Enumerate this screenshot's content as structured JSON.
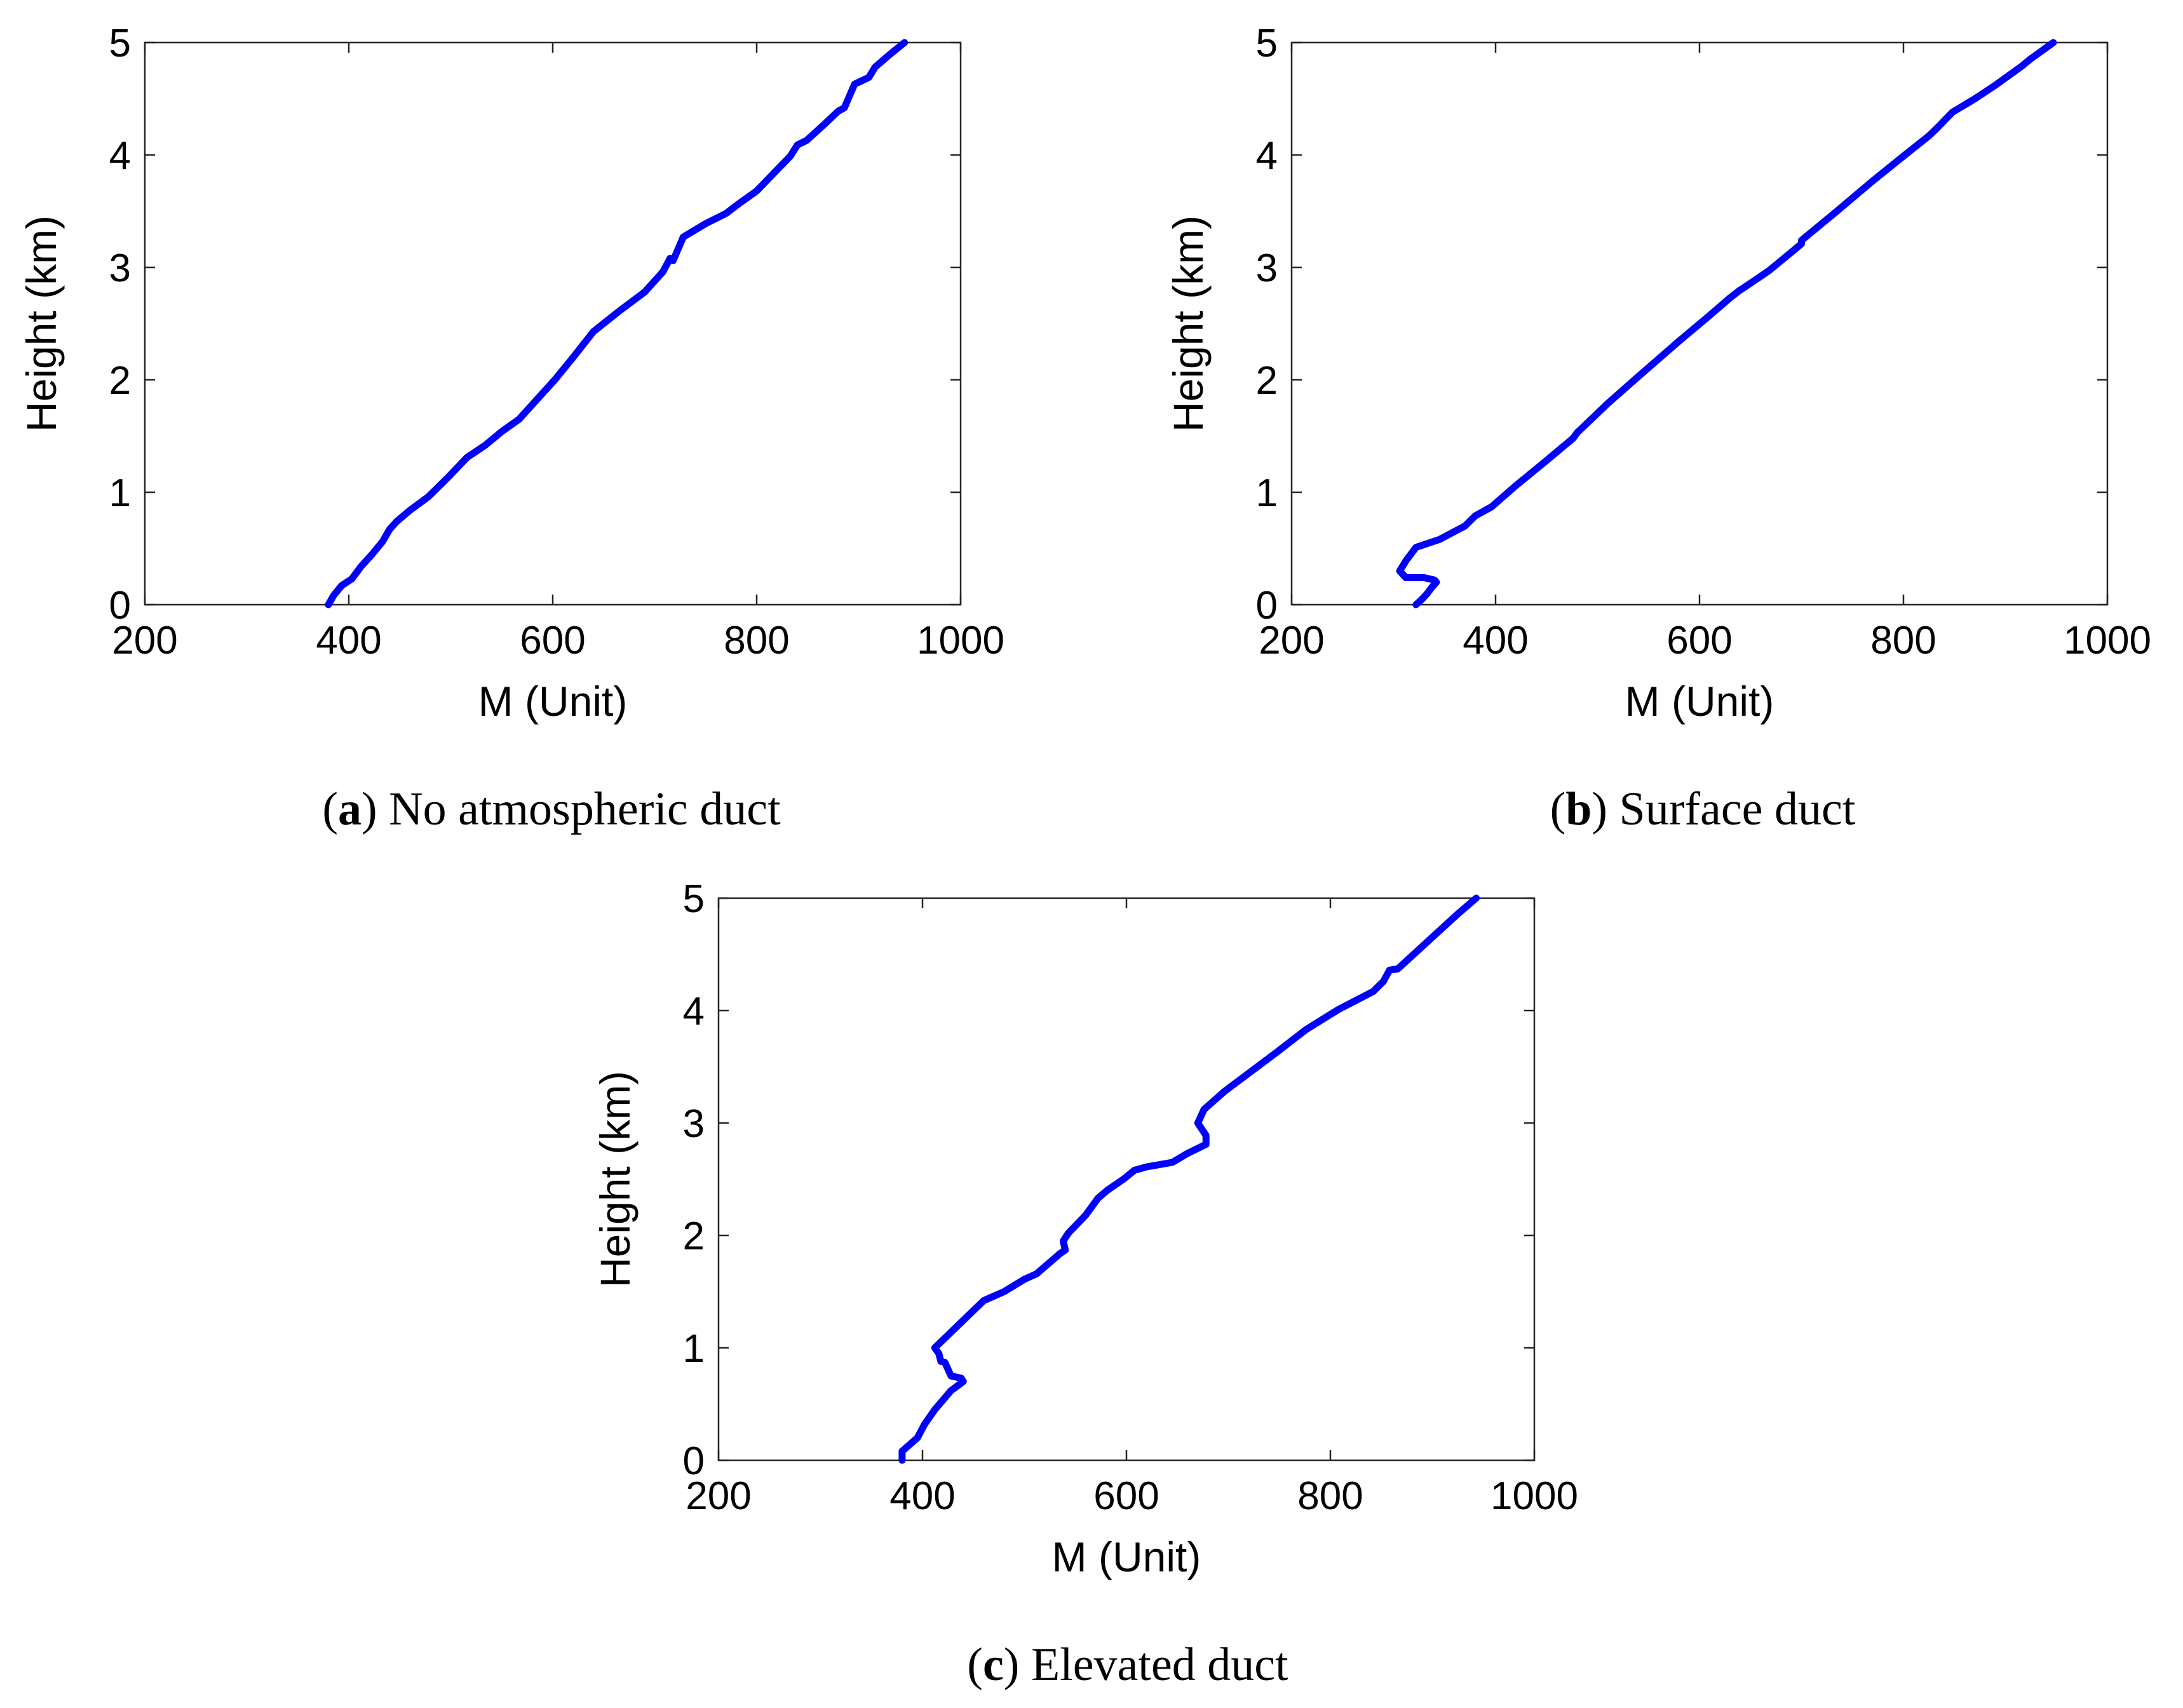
{
  "chart_data": [
    {
      "type": "line",
      "caption": {
        "letter": "a",
        "text": "No atmospheric duct"
      },
      "xlabel": "M (Unit)",
      "ylabel": "Height (km)",
      "xlim": [
        200,
        1000
      ],
      "ylim": [
        0,
        5
      ],
      "xticks": [
        "200",
        "400",
        "600",
        "800",
        "1000"
      ],
      "yticks": [
        "0",
        "1",
        "2",
        "3",
        "4",
        "5"
      ],
      "grid": false,
      "line_color": "#0000ff",
      "series": [
        {
          "x": [
            380,
            385,
            393,
            403,
            412,
            423,
            433,
            440,
            447,
            460,
            478,
            497,
            516,
            534,
            550,
            567,
            585,
            602,
            620,
            640,
            665,
            690,
            708,
            715,
            718,
            728,
            750,
            770,
            783,
            800,
            817,
            833,
            840,
            849,
            866,
            880,
            886,
            896,
            910,
            916,
            930,
            945
          ],
          "y": [
            0.0,
            0.08,
            0.17,
            0.23,
            0.34,
            0.45,
            0.56,
            0.67,
            0.74,
            0.84,
            0.96,
            1.13,
            1.31,
            1.42,
            1.54,
            1.65,
            1.83,
            2.0,
            2.2,
            2.43,
            2.61,
            2.78,
            2.96,
            3.08,
            3.06,
            3.27,
            3.39,
            3.48,
            3.57,
            3.68,
            3.84,
            3.99,
            4.09,
            4.13,
            4.27,
            4.39,
            4.42,
            4.63,
            4.69,
            4.78,
            4.89,
            5.0
          ]
        }
      ]
    },
    {
      "type": "line",
      "caption": {
        "letter": "b",
        "text": "Surface duct"
      },
      "xlabel": "M (Unit)",
      "ylabel": "Height (km)",
      "xlim": [
        200,
        1000
      ],
      "ylim": [
        0,
        5
      ],
      "xticks": [
        "200",
        "400",
        "600",
        "800",
        "1000"
      ],
      "yticks": [
        "0",
        "1",
        "2",
        "3",
        "4",
        "5"
      ],
      "grid": false,
      "line_color": "#0000ff",
      "series": [
        {
          "x": [
            322,
            328,
            333,
            337,
            342,
            340,
            330,
            312,
            306,
            312,
            322,
            345,
            370,
            380,
            396,
            420,
            447,
            476,
            480,
            510,
            540,
            573,
            578,
            607,
            630,
            640,
            642,
            668,
            692,
            700,
            700,
            736,
            770,
            800,
            818,
            825,
            833,
            848,
            870,
            890,
            916,
            924,
            947
          ],
          "y": [
            0.0,
            0.05,
            0.1,
            0.15,
            0.2,
            0.22,
            0.24,
            0.24,
            0.3,
            0.39,
            0.51,
            0.58,
            0.7,
            0.79,
            0.87,
            1.06,
            1.26,
            1.48,
            1.53,
            1.79,
            2.03,
            2.29,
            2.33,
            2.55,
            2.73,
            2.8,
            2.81,
            2.97,
            3.15,
            3.21,
            3.24,
            3.51,
            3.77,
            3.99,
            4.12,
            4.17,
            4.24,
            4.38,
            4.5,
            4.62,
            4.79,
            4.85,
            5.0
          ]
        }
      ]
    },
    {
      "type": "line",
      "caption": {
        "letter": "c",
        "text": "Elevated duct"
      },
      "xlabel": "M (Unit)",
      "ylabel": "Height (km)",
      "xlim": [
        200,
        1000
      ],
      "ylim": [
        0,
        5
      ],
      "xticks": [
        "200",
        "400",
        "600",
        "800",
        "1000"
      ],
      "yticks": [
        "0",
        "1",
        "2",
        "3",
        "4",
        "5"
      ],
      "grid": false,
      "line_color": "#0000ff",
      "series": [
        {
          "x": [
            380,
            380,
            395,
            402,
            412,
            428,
            440,
            438,
            428,
            422,
            418,
            416,
            412,
            460,
            480,
            500,
            512,
            535,
            540,
            538,
            543,
            560,
            572,
            581,
            597,
            608,
            620,
            645,
            660,
            678,
            678,
            670,
            672,
            676,
            696,
            746,
            776,
            808,
            842,
            852,
            858,
            866,
            878,
            925,
            943
          ],
          "y": [
            0.0,
            0.08,
            0.2,
            0.32,
            0.45,
            0.62,
            0.7,
            0.73,
            0.75,
            0.87,
            0.88,
            0.95,
            1.0,
            1.42,
            1.5,
            1.61,
            1.66,
            1.84,
            1.87,
            1.95,
            2.02,
            2.18,
            2.33,
            2.4,
            2.5,
            2.58,
            2.61,
            2.65,
            2.73,
            2.81,
            2.89,
            3.0,
            3.04,
            3.12,
            3.28,
            3.62,
            3.83,
            4.01,
            4.17,
            4.26,
            4.36,
            4.37,
            4.47,
            4.86,
            5.0
          ]
        }
      ]
    }
  ]
}
